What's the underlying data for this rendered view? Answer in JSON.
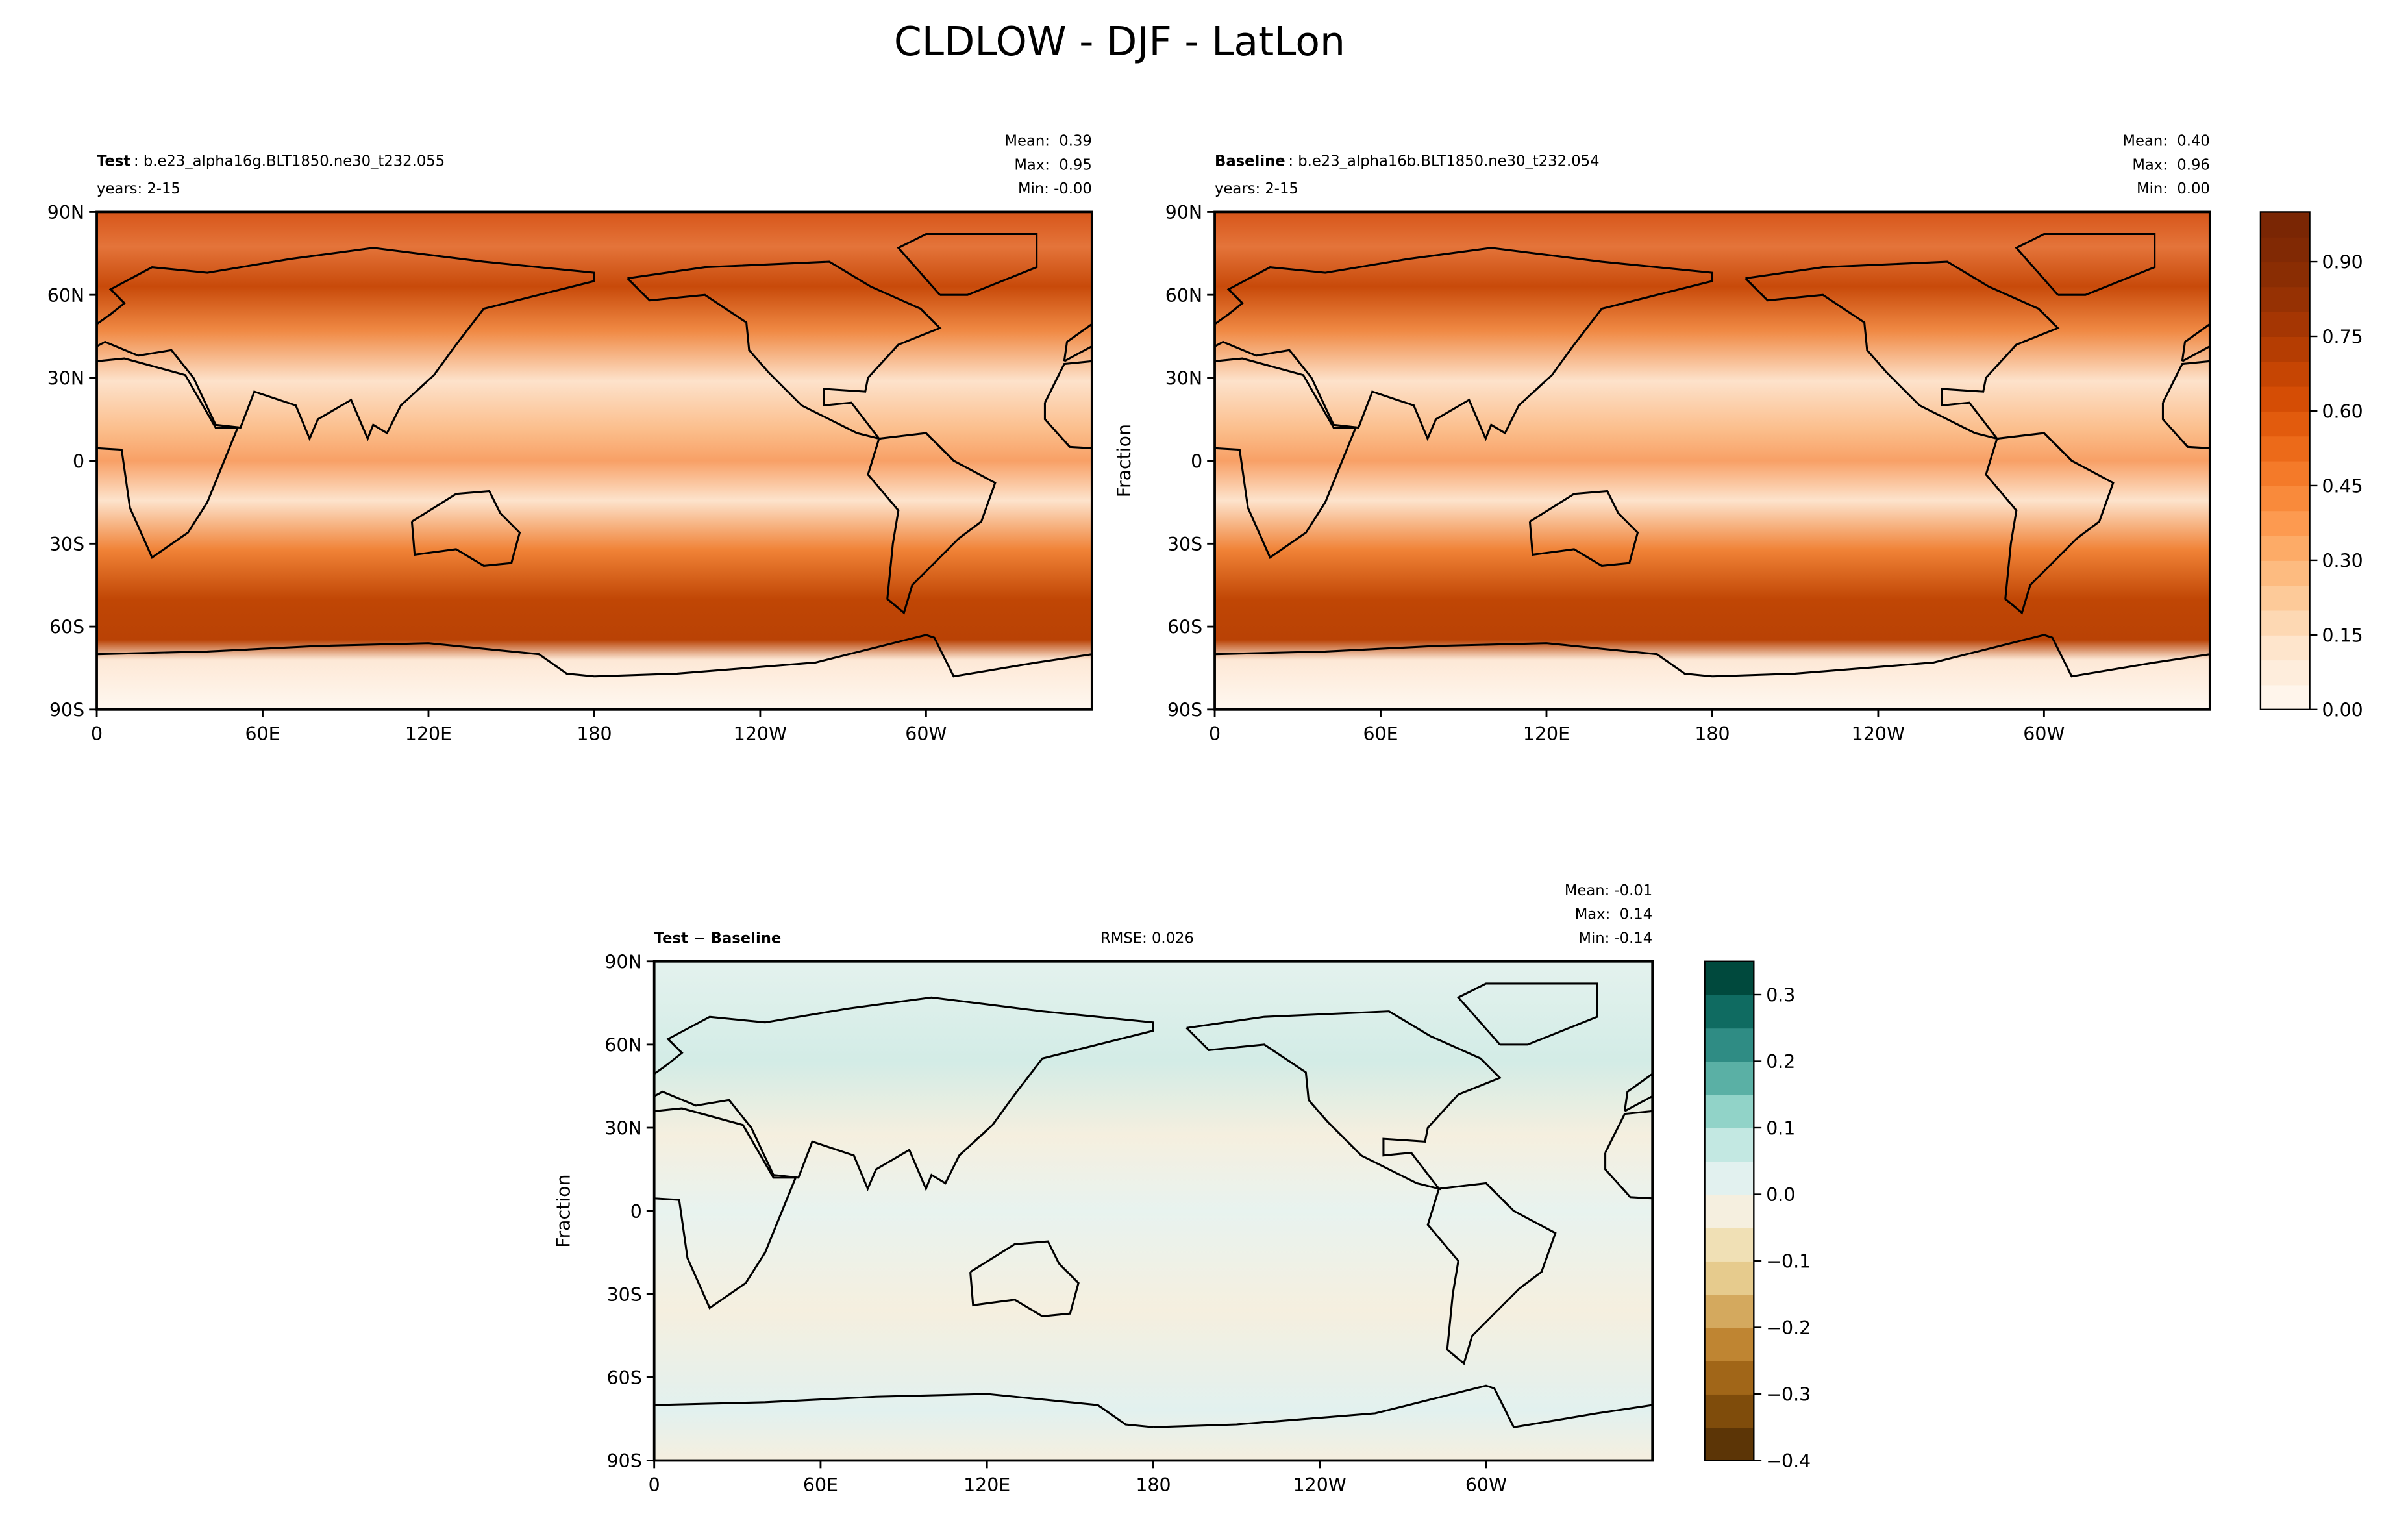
{
  "figure_title": "CLDLOW - DJF - LatLon",
  "chart_data": [
    {
      "type": "contour-map",
      "title": "Test",
      "case": ": b.e23_alpha16g.BLT1850.ne30_t232.055",
      "years": "years: 2-15",
      "stats": [
        "Mean:  0.39",
        "Max:  0.95",
        "Min: -0.00"
      ],
      "xlim": [
        0,
        360
      ],
      "ylim": [
        -90,
        90
      ],
      "xticks": [
        0,
        {
          "value": 60,
          "label": "60E"
        },
        {
          "value": 120,
          "label": "120E"
        },
        180,
        {
          "value": 240,
          "label": "120W"
        },
        {
          "value": 300,
          "label": "60W"
        }
      ],
      "yticks": [
        {
          "value": -90,
          "label": "90S"
        },
        {
          "value": -60,
          "label": "60S"
        },
        {
          "value": -30,
          "label": "30S"
        },
        0,
        {
          "value": 30,
          "label": "30N"
        },
        {
          "value": 60,
          "label": "60N"
        },
        {
          "value": 90,
          "label": "90N"
        }
      ]
    },
    {
      "type": "contour-map",
      "title": "Baseline",
      "case": ": b.e23_alpha16b.BLT1850.ne30_t232.054",
      "years": "years: 2-15",
      "stats": [
        "Mean:  0.40",
        "Max:  0.96",
        "Min:  0.00"
      ],
      "ylabel": "Fraction",
      "xlim": [
        0,
        360
      ],
      "ylim": [
        -90,
        90
      ],
      "xticks": [
        0,
        {
          "value": 60,
          "label": "60E"
        },
        {
          "value": 120,
          "label": "120E"
        },
        180,
        {
          "value": 240,
          "label": "120W"
        },
        {
          "value": 300,
          "label": "60W"
        }
      ],
      "yticks": [
        {
          "value": -90,
          "label": "90S"
        },
        {
          "value": -60,
          "label": "60S"
        },
        {
          "value": -30,
          "label": "30S"
        },
        0,
        {
          "value": 30,
          "label": "30N"
        },
        {
          "value": 60,
          "label": "60N"
        },
        {
          "value": 90,
          "label": "90N"
        }
      ],
      "colorbar": {
        "clim": [
          0,
          1
        ],
        "ticks": [
          {
            "value": 0,
            "label": "0.00"
          },
          {
            "value": 0.15,
            "label": "0.15"
          },
          {
            "value": 0.3,
            "label": "0.30"
          },
          {
            "value": 0.45,
            "label": "0.45"
          },
          {
            "value": 0.6,
            "label": "0.60"
          },
          {
            "value": 0.75,
            "label": "0.75"
          },
          {
            "value": 0.9,
            "label": "0.90"
          }
        ],
        "colors": [
          "#fff5eb",
          "#feeddc",
          "#fee5cc",
          "#fdd8b3",
          "#fdca99",
          "#fdbb80",
          "#fdab67",
          "#fd9a50",
          "#f98a3b",
          "#f47a29",
          "#ec6a19",
          "#e25b0d",
          "#d54d05",
          "#c64503",
          "#b53d02",
          "#a53603",
          "#963103",
          "#8a2d03",
          "#812904",
          "#7a2604"
        ]
      }
    },
    {
      "type": "contour-map",
      "title": "Test − Baseline",
      "rmse": "RMSE: 0.026",
      "stats": [
        "Mean: -0.01",
        "Max:  0.14",
        "Min: -0.14"
      ],
      "ylabel": "Fraction",
      "xlim": [
        0,
        360
      ],
      "ylim": [
        -90,
        90
      ],
      "xticks": [
        0,
        {
          "value": 60,
          "label": "60E"
        },
        {
          "value": 120,
          "label": "120E"
        },
        180,
        {
          "value": 240,
          "label": "120W"
        },
        {
          "value": 300,
          "label": "60W"
        }
      ],
      "yticks": [
        {
          "value": -90,
          "label": "90S"
        },
        {
          "value": -60,
          "label": "60S"
        },
        {
          "value": -30,
          "label": "30S"
        },
        0,
        {
          "value": 30,
          "label": "30N"
        },
        {
          "value": 60,
          "label": "60N"
        },
        {
          "value": 90,
          "label": "90N"
        }
      ],
      "colorbar": {
        "clim": [
          -0.4,
          0.35
        ],
        "ticks": [
          {
            "value": -0.4,
            "label": "−0.4"
          },
          {
            "value": -0.3,
            "label": "−0.3"
          },
          {
            "value": -0.2,
            "label": "−0.2"
          },
          {
            "value": -0.1,
            "label": "−0.1"
          },
          {
            "value": 0,
            "label": "0.0"
          },
          {
            "value": 0.1,
            "label": "0.1"
          },
          {
            "value": 0.2,
            "label": "0.2"
          },
          {
            "value": 0.3,
            "label": "0.3"
          }
        ],
        "colors": [
          "#5c3506",
          "#7f4c0b",
          "#a16618",
          "#bf8532",
          "#d4a95e",
          "#e6cb8d",
          "#f0e0b5",
          "#f5efdf",
          "#e2f1ef",
          "#c3e8e2",
          "#91d3c8",
          "#5ab0a5",
          "#2f8c84",
          "#0f6b61",
          "#00493d"
        ]
      }
    }
  ]
}
